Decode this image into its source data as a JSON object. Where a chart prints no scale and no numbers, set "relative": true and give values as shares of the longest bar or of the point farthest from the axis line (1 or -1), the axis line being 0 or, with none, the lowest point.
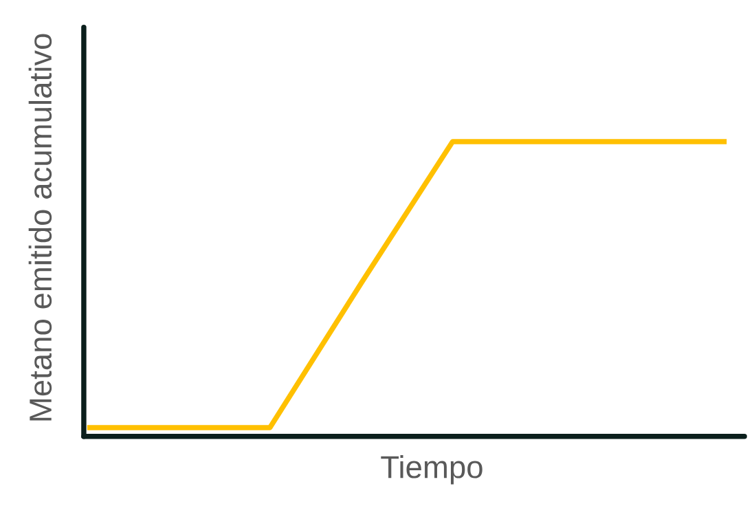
{
  "chart_data": {
    "type": "line",
    "xlabel": "Tiempo",
    "ylabel": "Metano emitido acumulativo",
    "relative": true,
    "categories": [
      null,
      null,
      null,
      null,
      null,
      null,
      null,
      null
    ],
    "series": [
      {
        "color": "#ffc000",
        "values": [
          0.03,
          0.03,
          0.03,
          0.52,
          1,
          1,
          1,
          1
        ]
      }
    ]
  }
}
